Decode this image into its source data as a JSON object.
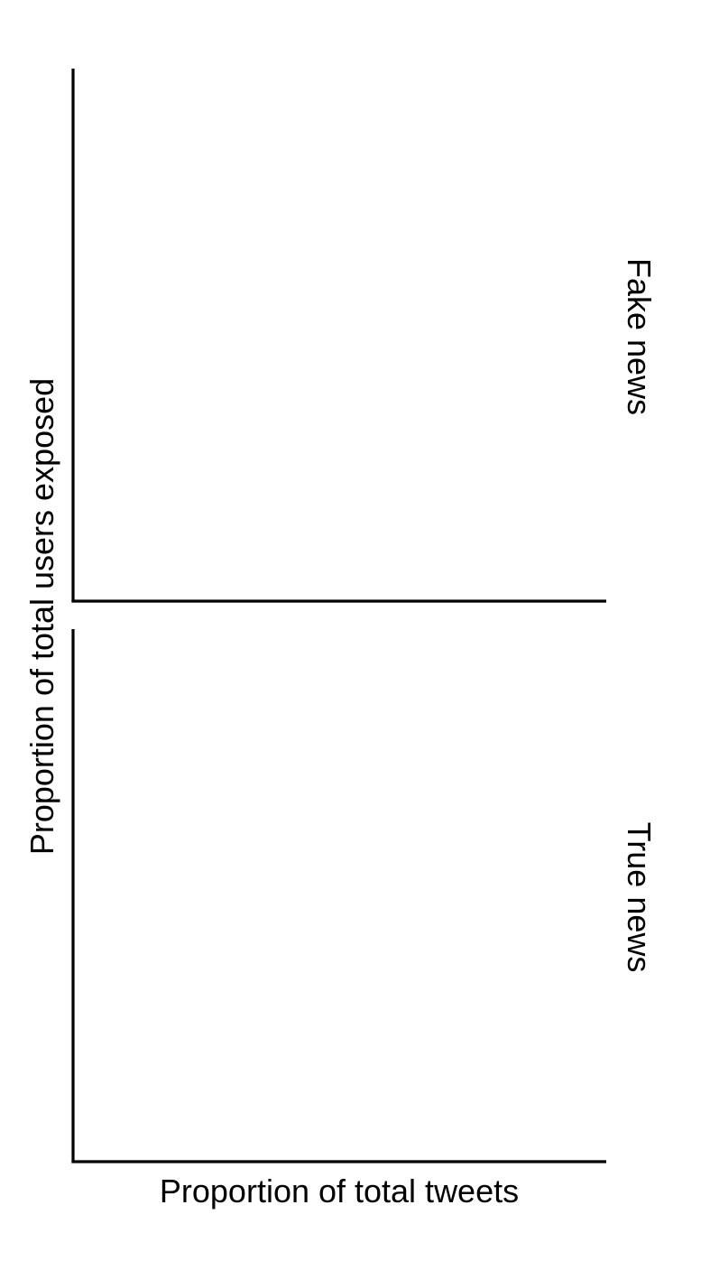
{
  "chart_data": [
    {
      "type": "line",
      "facet_label": "Fake news",
      "xlabel": "Proportion of total tweets",
      "ylabel": "Proportion of total users exposed",
      "grid": false,
      "series": []
    },
    {
      "type": "line",
      "facet_label": "True news",
      "xlabel": "Proportion of total tweets",
      "ylabel": "Proportion of total users exposed",
      "grid": false,
      "series": []
    }
  ],
  "labels": {
    "x_axis": "Proportion of total tweets",
    "y_axis": "Proportion of total users exposed",
    "panel_top": "Fake news",
    "panel_bottom": "True news"
  },
  "colors": {
    "axis": "#000000",
    "background": "#ffffff"
  }
}
